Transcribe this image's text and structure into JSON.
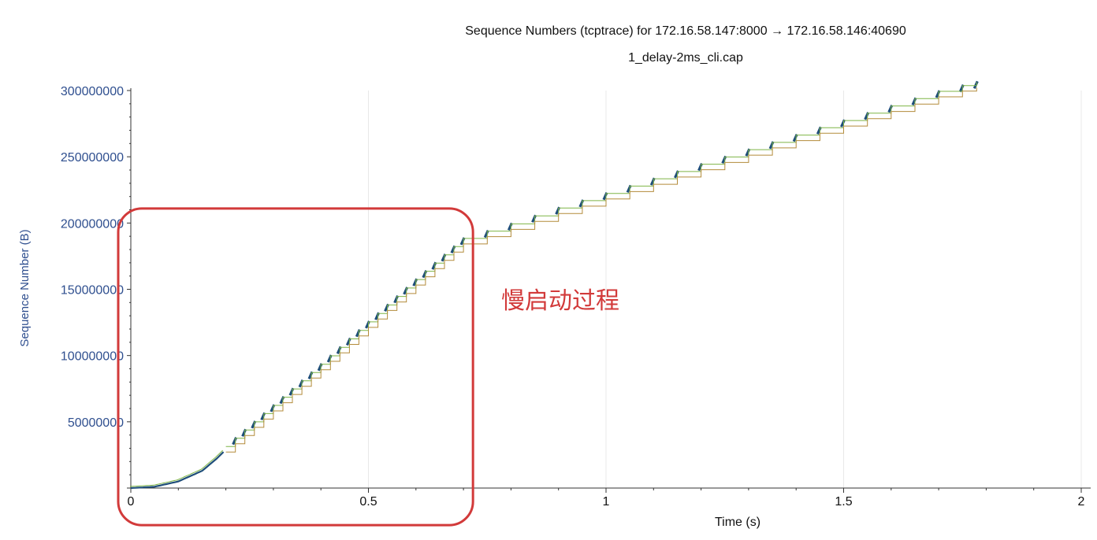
{
  "chart_data": {
    "type": "line",
    "title": "Sequence Numbers (tcptrace) for 172.16.58.147:8000 → 172.16.58.146:40690",
    "subtitle": "1_delay-2ms_cli.cap",
    "xlabel": "Time (s)",
    "ylabel": "Sequence Number (B)",
    "xlim": [
      0,
      2
    ],
    "ylim": [
      0,
      300000000
    ],
    "x_ticks": [
      0,
      0.5,
      1,
      1.5,
      2
    ],
    "x_tick_labels": [
      "0",
      "0.5",
      "1",
      "1.5",
      "2"
    ],
    "y_ticks": [
      50000000,
      100000000,
      150000000,
      200000000,
      250000000,
      300000000
    ],
    "y_tick_labels": [
      "50000000",
      "100000000",
      "150000000",
      "200000000",
      "250000000",
      "300000000"
    ],
    "grid": true,
    "series": [
      {
        "color": "#1f4e79",
        "x": [
          0,
          0.05,
          0.1,
          0.15,
          0.18,
          0.2,
          0.3,
          0.4,
          0.5,
          0.6,
          0.7,
          0.8,
          0.9,
          1.0,
          1.1,
          1.2,
          1.3,
          1.4,
          1.5,
          1.6,
          1.7,
          1.78
        ],
        "y": [
          0,
          1000000,
          5000000,
          13000000,
          22000000,
          29000000,
          60000000,
          91000000,
          123000000,
          155000000,
          186000000,
          197000000,
          209000000,
          220000000,
          231000000,
          242000000,
          253000000,
          264000000,
          275000000,
          286000000,
          297000000,
          304000000
        ]
      }
    ],
    "annotation": {
      "text": "慢启动过程",
      "box_x": [
        0,
        0.72
      ],
      "box_y": [
        -28000000,
        211000000
      ]
    }
  }
}
